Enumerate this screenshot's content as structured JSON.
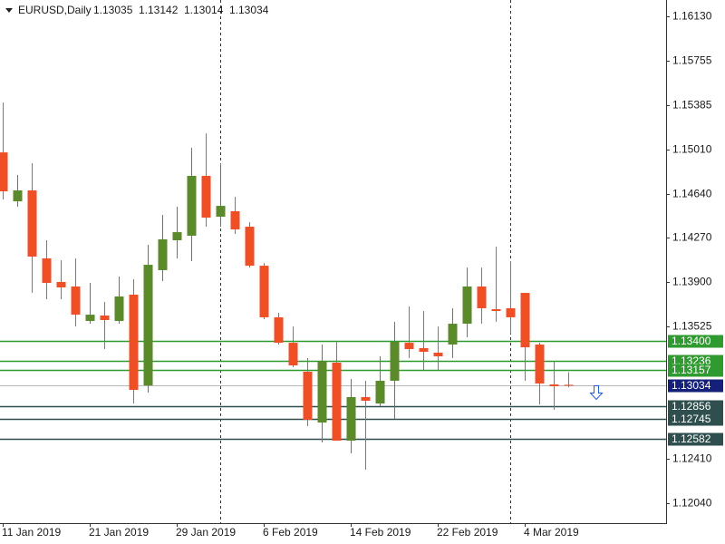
{
  "chart_data": {
    "type": "candlestick",
    "title": "EURUSD,Daily",
    "categories": [
      "11 Jan 2019",
      null,
      null,
      null,
      null,
      null,
      "21 Jan 2019",
      null,
      null,
      null,
      null,
      null,
      "29 Jan 2019",
      null,
      null,
      null,
      null,
      null,
      "6 Feb 2019",
      null,
      null,
      null,
      null,
      null,
      "14 Feb 2019",
      null,
      null,
      null,
      null,
      null,
      "22 Feb 2019",
      null,
      null,
      null,
      null,
      null,
      "4 Mar 2019",
      null,
      null,
      null
    ],
    "open": [
      1.14987,
      1.14576,
      1.14668,
      1.14097,
      1.13899,
      1.13861,
      1.13571,
      1.13617,
      1.13571,
      1.13792,
      1.1303,
      1.13998,
      1.14249,
      1.14287,
      1.1479,
      1.14447,
      1.14493,
      1.14363,
      1.14035,
      1.13602,
      1.13388,
      1.13145,
      1.12718,
      1.13221,
      1.12566,
      1.12932,
      1.12878,
      1.13069,
      1.13388,
      1.13343,
      1.13305,
      1.13373,
      1.13548,
      1.13861,
      1.1367,
      1.13678,
      1.13807,
      1.13373,
      1.13038,
      1.13035
    ],
    "high": [
      1.15406,
      1.14797,
      1.14896,
      1.14249,
      1.14081,
      1.14097,
      1.13891,
      1.13731,
      1.13944,
      1.13922,
      1.14211,
      1.14462,
      1.14531,
      1.15026,
      1.15147,
      1.14896,
      1.14614,
      1.14401,
      1.14058,
      1.1364,
      1.13525,
      1.13259,
      1.13373,
      1.13404,
      1.13084,
      1.13069,
      1.13274,
      1.13564,
      1.13693,
      1.13655,
      1.13525,
      1.13678,
      1.1402,
      1.1402,
      1.14195,
      1.14074,
      1.13807,
      1.13388,
      1.13236,
      1.13142
    ],
    "low": [
      1.14592,
      1.14531,
      1.13807,
      1.13754,
      1.13754,
      1.13525,
      1.13548,
      1.13335,
      1.13548,
      1.12878,
      1.12969,
      1.13906,
      1.14097,
      1.14074,
      1.14363,
      1.14363,
      1.14302,
      1.1402,
      1.13586,
      1.13373,
      1.13183,
      1.12688,
      1.12551,
      1.12566,
      1.12459,
      1.12322,
      1.12855,
      1.12748,
      1.13259,
      1.1316,
      1.1316,
      1.13259,
      1.13434,
      1.13548,
      1.13564,
      1.13465,
      1.13069,
      1.1287,
      1.12825,
      1.13014
    ],
    "close": [
      1.1466,
      1.14668,
      1.14112,
      1.13891,
      1.13853,
      1.13624,
      1.13624,
      1.13579,
      1.13777,
      1.12992,
      1.14043,
      1.14257,
      1.14317,
      1.1479,
      1.14439,
      1.14538,
      1.1434,
      1.14035,
      1.13602,
      1.13388,
      1.13198,
      1.12741,
      1.13236,
      1.12566,
      1.12932,
      1.12901,
      1.13069,
      1.13396,
      1.13335,
      1.13312,
      1.13274,
      1.13548,
      1.13861,
      1.13678,
      1.13655,
      1.13602,
      1.1335,
      1.13046,
      1.13023,
      1.13034
    ],
    "up_color": "#5a8a2a",
    "down_color": "#f04e24",
    "ylim": [
      1.11873,
      1.16267
    ],
    "yticks": [
      {
        "value": 1.1613,
        "label": "1.16130"
      },
      {
        "value": 1.15755,
        "label": "1.15755"
      },
      {
        "value": 1.15385,
        "label": "1.15385"
      },
      {
        "value": 1.1501,
        "label": "1.15010"
      },
      {
        "value": 1.1464,
        "label": "1.14640"
      },
      {
        "value": 1.1427,
        "label": "1.14270"
      },
      {
        "value": 1.139,
        "label": "1.13900"
      },
      {
        "value": 1.13525,
        "label": "1.13525"
      },
      {
        "value": 1.1241,
        "label": "1.12410"
      },
      {
        "value": 1.1204,
        "label": "1.12040"
      }
    ],
    "levels": [
      {
        "value": 1.134,
        "label": "1.13400",
        "color": "#2f9a2f"
      },
      {
        "value": 1.13236,
        "label": "1.13236",
        "color": "#2f9a2f"
      },
      {
        "value": 1.13157,
        "label": "1.13157",
        "color": "#2f9a2f"
      },
      {
        "value": 1.12856,
        "label": "1.12856",
        "color": "#2f4f4f"
      },
      {
        "value": 1.12745,
        "label": "1.12745",
        "color": "#2f4f4f"
      },
      {
        "value": 1.12582,
        "label": "1.12582",
        "color": "#2f4f4f"
      }
    ],
    "current_price_color": "#14207a"
  }
}
